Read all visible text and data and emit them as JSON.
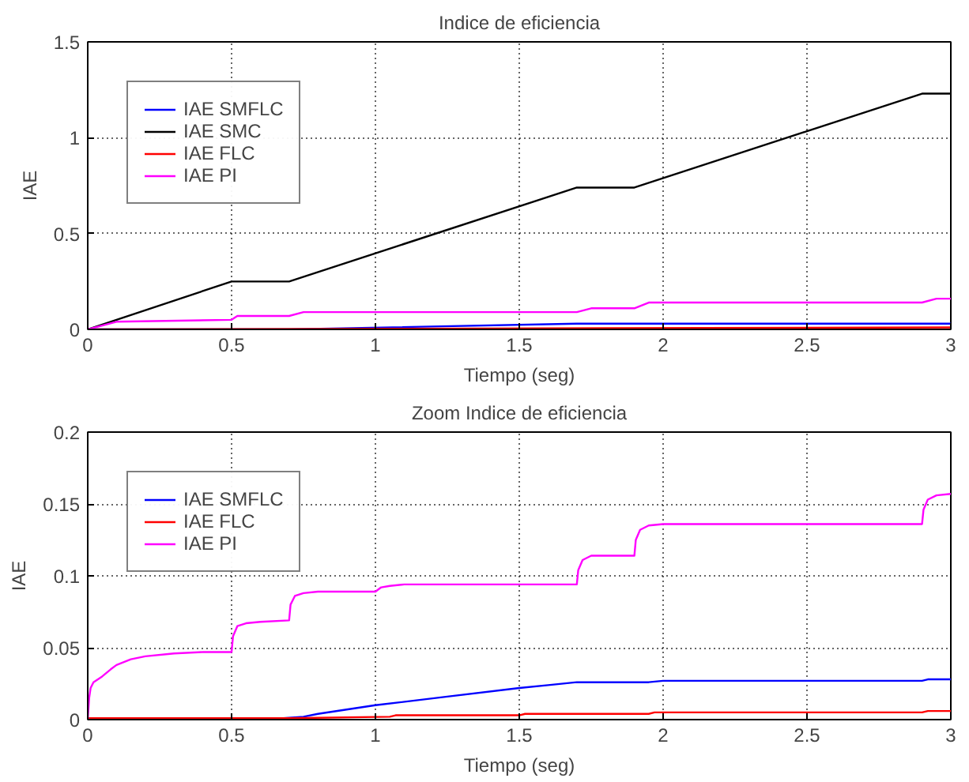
{
  "chart_data": [
    {
      "type": "line",
      "title": "Indice de eficiencia",
      "xlabel": "Tiempo (seg)",
      "ylabel": "IAE",
      "xlim": [
        0,
        3
      ],
      "ylim": [
        0,
        1.5
      ],
      "xticks": [
        0,
        0.5,
        1,
        1.5,
        2,
        2.5,
        3
      ],
      "yticks": [
        0,
        0.5,
        1,
        1.5
      ],
      "grid": true,
      "legend": "top left",
      "series": [
        {
          "name": "IAE SMFLC",
          "color": "#0000ff",
          "x": [
            0,
            0.7,
            1.7,
            3
          ],
          "values": [
            0,
            0,
            0.03,
            0.03
          ]
        },
        {
          "name": "IAE SMC",
          "color": "#000000",
          "x": [
            0,
            0.5,
            0.7,
            1.7,
            1.9,
            2.9,
            3
          ],
          "values": [
            0,
            0.25,
            0.25,
            0.74,
            0.74,
            1.23,
            1.23
          ]
        },
        {
          "name": "IAE FLC",
          "color": "#ff0000",
          "x": [
            0,
            3
          ],
          "values": [
            0,
            0.01
          ]
        },
        {
          "name": "IAE PI",
          "color": "#ff00ff",
          "x": [
            0,
            0.1,
            0.5,
            0.52,
            0.7,
            0.75,
            1.0,
            1.05,
            1.7,
            1.75,
            1.9,
            1.95,
            2.9,
            2.95,
            3
          ],
          "values": [
            0,
            0.04,
            0.05,
            0.07,
            0.07,
            0.09,
            0.09,
            0.09,
            0.09,
            0.11,
            0.11,
            0.14,
            0.14,
            0.16,
            0.16
          ]
        }
      ]
    },
    {
      "type": "line",
      "title": "Zoom Indice de eficiencia",
      "xlabel": "Tiempo (seg)",
      "ylabel": "IAE",
      "xlim": [
        0,
        3
      ],
      "ylim": [
        0,
        0.2
      ],
      "xticks": [
        0,
        0.5,
        1,
        1.5,
        2,
        2.5,
        3
      ],
      "yticks": [
        0,
        0.05,
        0.1,
        0.15,
        0.2
      ],
      "grid": true,
      "legend": "top left",
      "series": [
        {
          "name": "IAE SMFLC",
          "color": "#0000ff",
          "x": [
            0,
            0.68,
            0.75,
            0.8,
            0.9,
            1.0,
            1.25,
            1.5,
            1.6,
            1.7,
            1.95,
            2.0,
            2.9,
            2.92,
            3
          ],
          "values": [
            0.001,
            0.001,
            0.002,
            0.004,
            0.007,
            0.01,
            0.016,
            0.022,
            0.024,
            0.026,
            0.026,
            0.027,
            0.027,
            0.028,
            0.028
          ]
        },
        {
          "name": "IAE FLC",
          "color": "#ff0000",
          "x": [
            0,
            0.7,
            1.05,
            1.07,
            1.5,
            1.52,
            1.95,
            1.97,
            2.9,
            2.92,
            3
          ],
          "values": [
            0.001,
            0.001,
            0.002,
            0.003,
            0.003,
            0.004,
            0.004,
            0.005,
            0.005,
            0.006,
            0.006
          ]
        },
        {
          "name": "IAE PI",
          "color": "#ff00ff",
          "x": [
            0,
            0.005,
            0.01,
            0.02,
            0.05,
            0.08,
            0.1,
            0.15,
            0.2,
            0.3,
            0.4,
            0.5,
            0.505,
            0.52,
            0.55,
            0.6,
            0.7,
            0.705,
            0.72,
            0.75,
            0.8,
            1.0,
            1.02,
            1.05,
            1.1,
            1.7,
            1.705,
            1.72,
            1.75,
            1.9,
            1.905,
            1.92,
            1.95,
            2.0,
            2.9,
            2.905,
            2.92,
            2.95,
            3
          ],
          "values": [
            0,
            0.015,
            0.022,
            0.026,
            0.03,
            0.035,
            0.038,
            0.042,
            0.044,
            0.046,
            0.047,
            0.047,
            0.058,
            0.065,
            0.067,
            0.068,
            0.069,
            0.08,
            0.086,
            0.088,
            0.089,
            0.089,
            0.092,
            0.093,
            0.094,
            0.094,
            0.104,
            0.111,
            0.114,
            0.114,
            0.125,
            0.132,
            0.135,
            0.136,
            0.136,
            0.146,
            0.153,
            0.156,
            0.157
          ]
        }
      ]
    }
  ]
}
